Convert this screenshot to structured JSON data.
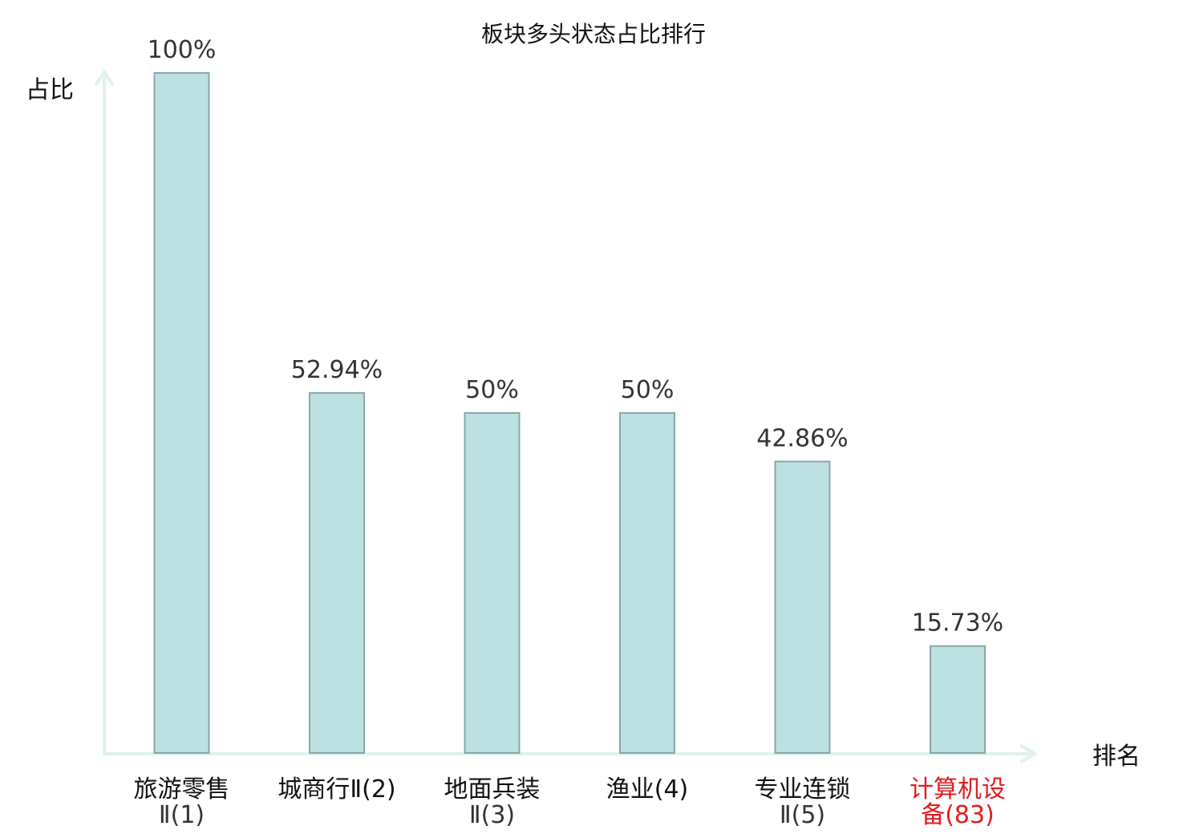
{
  "chart_data": {
    "type": "bar",
    "title": "板块多头状态占比排行",
    "ylabel": "占比",
    "xlabel": "排名",
    "ylim": [
      0,
      100
    ],
    "grid": false,
    "categories": [
      {
        "line1": "旅游零售",
        "line2": "Ⅱ(1)",
        "highlight": false
      },
      {
        "line1": "城商行Ⅱ(2)",
        "line2": "",
        "highlight": false
      },
      {
        "line1": "地面兵装",
        "line2": "Ⅱ(3)",
        "highlight": false
      },
      {
        "line1": "渔业(4)",
        "line2": "",
        "highlight": false
      },
      {
        "line1": "专业连锁",
        "line2": "Ⅱ(5)",
        "highlight": false
      },
      {
        "line1": "计算机设",
        "line2": "备(83)",
        "highlight": true
      }
    ],
    "values": [
      100,
      52.94,
      50,
      50,
      42.86,
      15.73
    ],
    "value_labels": [
      "100%",
      "52.94%",
      "50%",
      "50%",
      "42.86%",
      "15.73%"
    ],
    "colors": {
      "bar_fill": "#bde0e3",
      "bar_stroke": "#8aa6a9",
      "axis": "#dff2ef",
      "highlight": "#e31a1c"
    }
  }
}
